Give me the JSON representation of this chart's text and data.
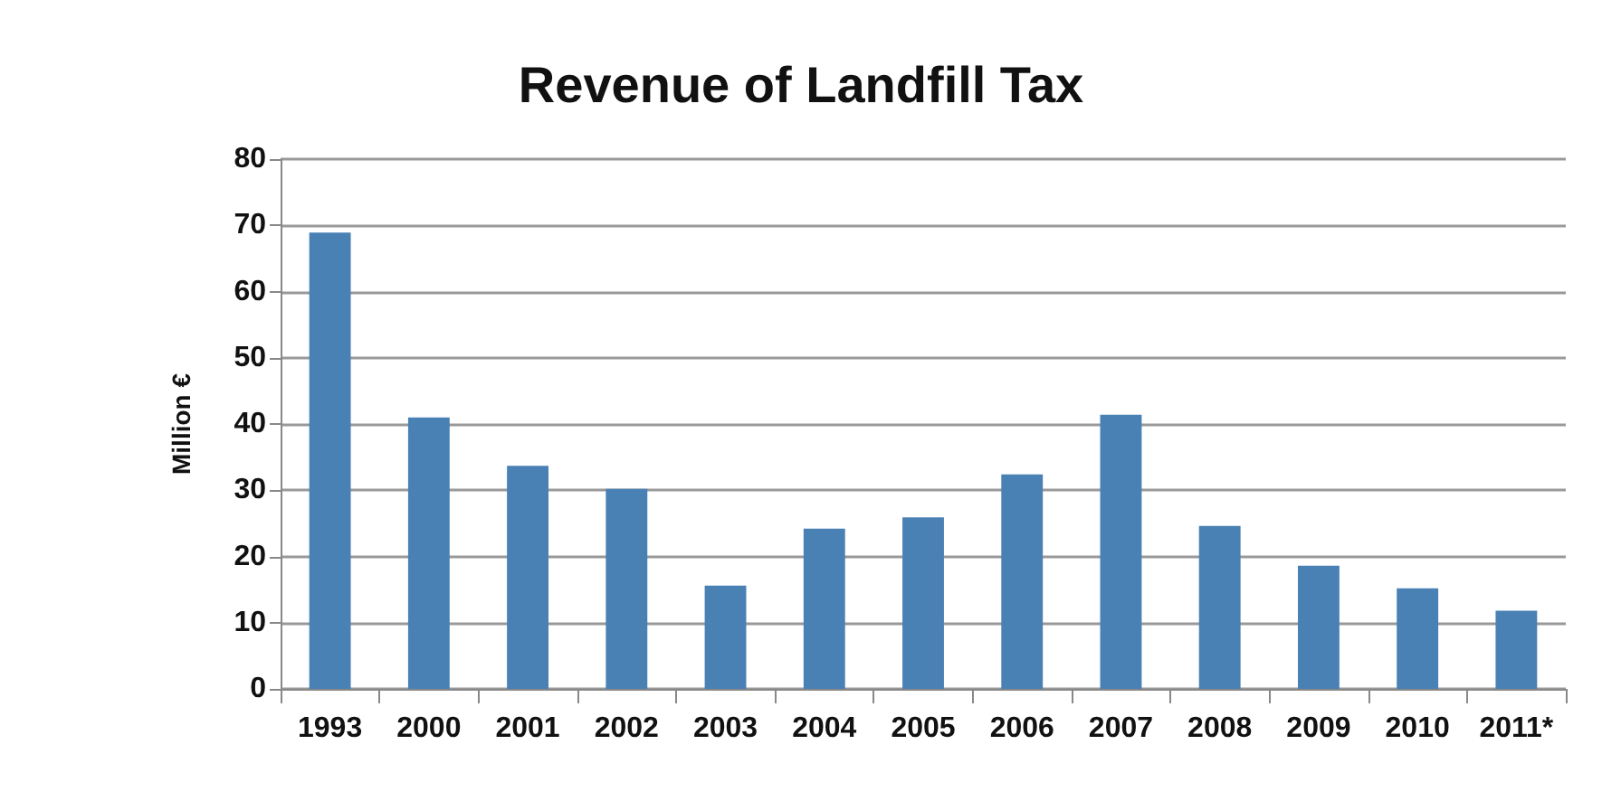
{
  "chart_data": {
    "type": "bar",
    "title": "Revenue of Landfill Tax",
    "ylabel": "Million €",
    "categories": [
      "1993",
      "2000",
      "2001",
      "2002",
      "2003",
      "2004",
      "2005",
      "2006",
      "2007",
      "2008",
      "2009",
      "2010",
      "2011*"
    ],
    "values": [
      68.9,
      41,
      33.7,
      30.2,
      15.6,
      24.2,
      25.9,
      32.4,
      41.4,
      24.6,
      18.6,
      15.2,
      11.8
    ],
    "color": "#4a81b5",
    "ylim": [
      0,
      80
    ],
    "yticks": [
      0,
      10,
      20,
      30,
      40,
      50,
      60,
      70,
      80
    ],
    "grid": "y"
  }
}
